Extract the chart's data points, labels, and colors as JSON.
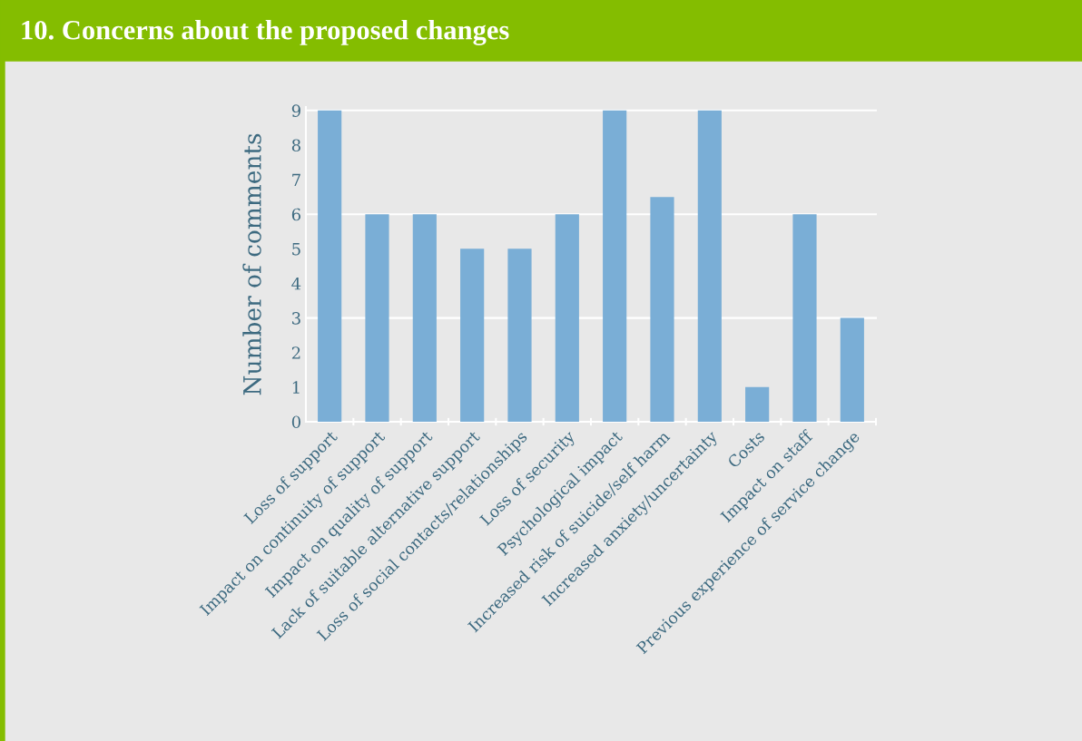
{
  "chart_data": {
    "type": "bar",
    "title": "10. Concerns about the proposed changes",
    "ylabel": "Number of comments",
    "categories": [
      "Loss of support",
      "Impact on continuity of support",
      "Impact on quality of support",
      "Lack of suitable alternative support",
      "Loss of social contacts/relationships",
      "Loss of security",
      "Psychological impact",
      "Increased risk of suicide/self harm",
      "Increased anxiety/uncertainty",
      "Costs",
      "Impact on staff",
      "Previous experience of service change"
    ],
    "values": [
      9,
      6,
      6,
      5,
      5,
      6,
      9,
      6.5,
      9,
      1,
      6,
      3
    ],
    "color": "#7aaed6",
    "ylim": [
      0,
      9.1
    ],
    "yticks": [
      0,
      1,
      2,
      3,
      4,
      5,
      6,
      7,
      8,
      9
    ],
    "ref_lines": [
      {
        "axis": "y",
        "value": 3,
        "color": "#ffffff"
      },
      {
        "axis": "y",
        "value": 6,
        "color": "#ffffff"
      },
      {
        "axis": "y",
        "value": 9,
        "color": "#ffffff"
      }
    ]
  }
}
